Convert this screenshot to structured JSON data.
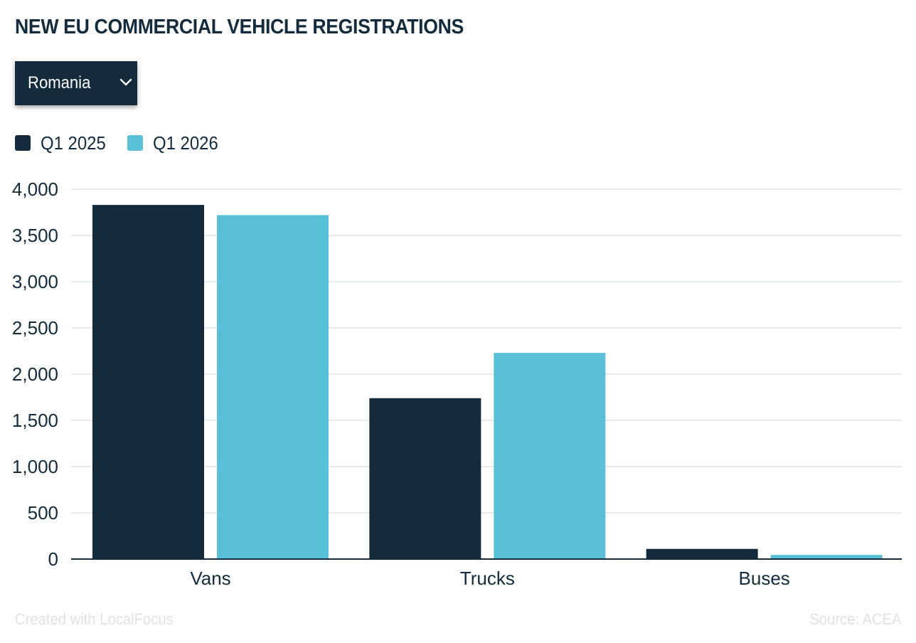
{
  "chart_data": {
    "type": "bar",
    "title": "NEW EU COMMERCIAL VEHICLE REGISTRATIONS",
    "categories": [
      "Vans",
      "Trucks",
      "Buses"
    ],
    "series": [
      {
        "name": "Q1 2025",
        "color": "#132b3c",
        "values": [
          3830,
          1740,
          110
        ]
      },
      {
        "name": "Q1 2026",
        "color": "#59c0d8",
        "values": [
          3720,
          2230,
          45
        ]
      }
    ],
    "xlabel": "",
    "ylabel": "",
    "ylim": [
      0,
      4000
    ],
    "yticks": [
      0,
      500,
      1000,
      1500,
      2000,
      2500,
      3000,
      3500,
      4000
    ],
    "ytick_labels": [
      "0",
      "500",
      "1,000",
      "1,500",
      "2,000",
      "2,500",
      "3,000",
      "3,500",
      "4,000"
    ],
    "grid": true,
    "legend_position": "top-left"
  },
  "filter": {
    "selected": "Romania",
    "icon": "chevron-down-icon"
  },
  "footer": {
    "credit": "Created with LocalFocus",
    "source": "Source: ACEA"
  }
}
